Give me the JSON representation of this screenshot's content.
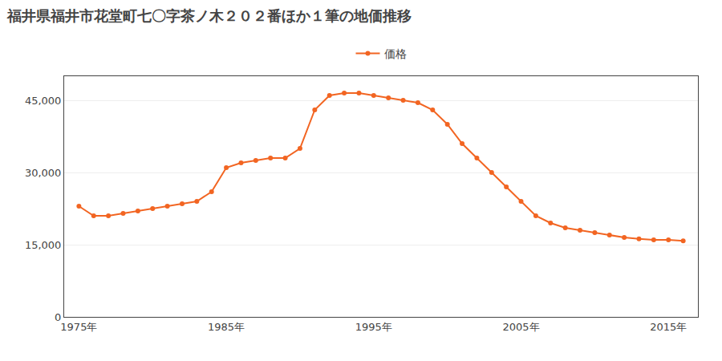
{
  "chart_data": {
    "type": "line",
    "title": "福井県福井市花堂町七〇字茶ノ木２０２番ほか１筆の地価推移",
    "x": [
      1975,
      1976,
      1977,
      1978,
      1979,
      1980,
      1981,
      1982,
      1983,
      1984,
      1985,
      1986,
      1987,
      1988,
      1989,
      1990,
      1991,
      1992,
      1993,
      1994,
      1995,
      1996,
      1997,
      1998,
      1999,
      2000,
      2001,
      2002,
      2003,
      2004,
      2005,
      2006,
      2007,
      2008,
      2009,
      2010,
      2011,
      2012,
      2013,
      2014,
      2015,
      2016
    ],
    "series": [
      {
        "name": "価格",
        "color": "#f26522",
        "marker": "circle",
        "values": [
          23000,
          21000,
          21000,
          21500,
          22000,
          22500,
          23000,
          23500,
          24000,
          26000,
          31000,
          32000,
          32500,
          33000,
          33000,
          35000,
          43000,
          46000,
          46500,
          46500,
          46000,
          45500,
          45000,
          44500,
          43000,
          40000,
          36000,
          33000,
          30000,
          27000,
          24000,
          21000,
          19500,
          18500,
          18000,
          17500,
          17000,
          16500,
          16200,
          16000,
          16000,
          15800
        ]
      }
    ],
    "xlim": [
      1974,
      2017
    ],
    "xticks": [
      {
        "value": 1975,
        "label": "1975年"
      },
      {
        "value": 1985,
        "label": "1985年"
      },
      {
        "value": 1995,
        "label": "1995年"
      },
      {
        "value": 2005,
        "label": "2005年"
      },
      {
        "value": 2015,
        "label": "2015年"
      }
    ],
    "ylim": [
      0,
      50000
    ],
    "yticks": [
      0,
      {
        "value": 15000,
        "label": "15,000"
      },
      {
        "value": 30000,
        "label": "30,000"
      },
      {
        "value": 45000,
        "label": "45,000"
      }
    ],
    "grid": "y",
    "legend": "top"
  }
}
